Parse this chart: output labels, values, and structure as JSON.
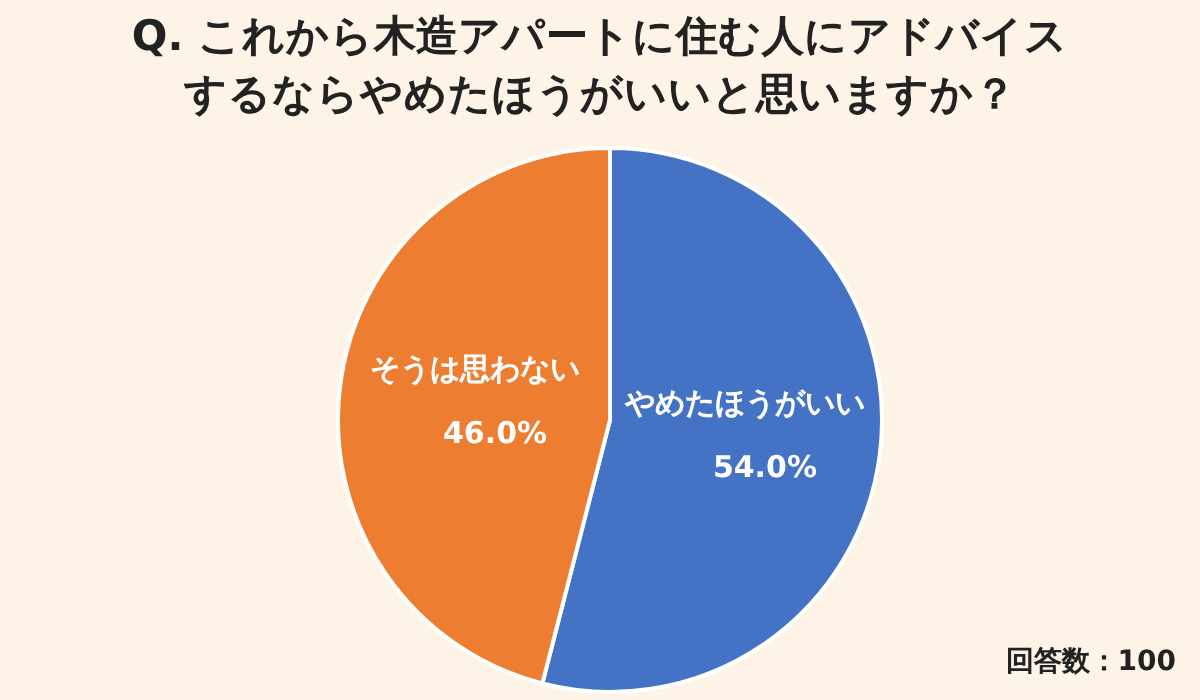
{
  "chart_data": {
    "type": "pie",
    "title": "Q. これから木造アパートに住む人にアドバイスするならやめたほうがいいと思いますか？",
    "categories": [
      "やめたほうがいい",
      "そうは思わない"
    ],
    "values": [
      54.0,
      46.0
    ],
    "colors": [
      "#4472c4",
      "#ed7d31"
    ],
    "value_labels": [
      "54.0%",
      "46.0%"
    ],
    "annotations": [
      "回答数：100"
    ],
    "legend": false
  }
}
